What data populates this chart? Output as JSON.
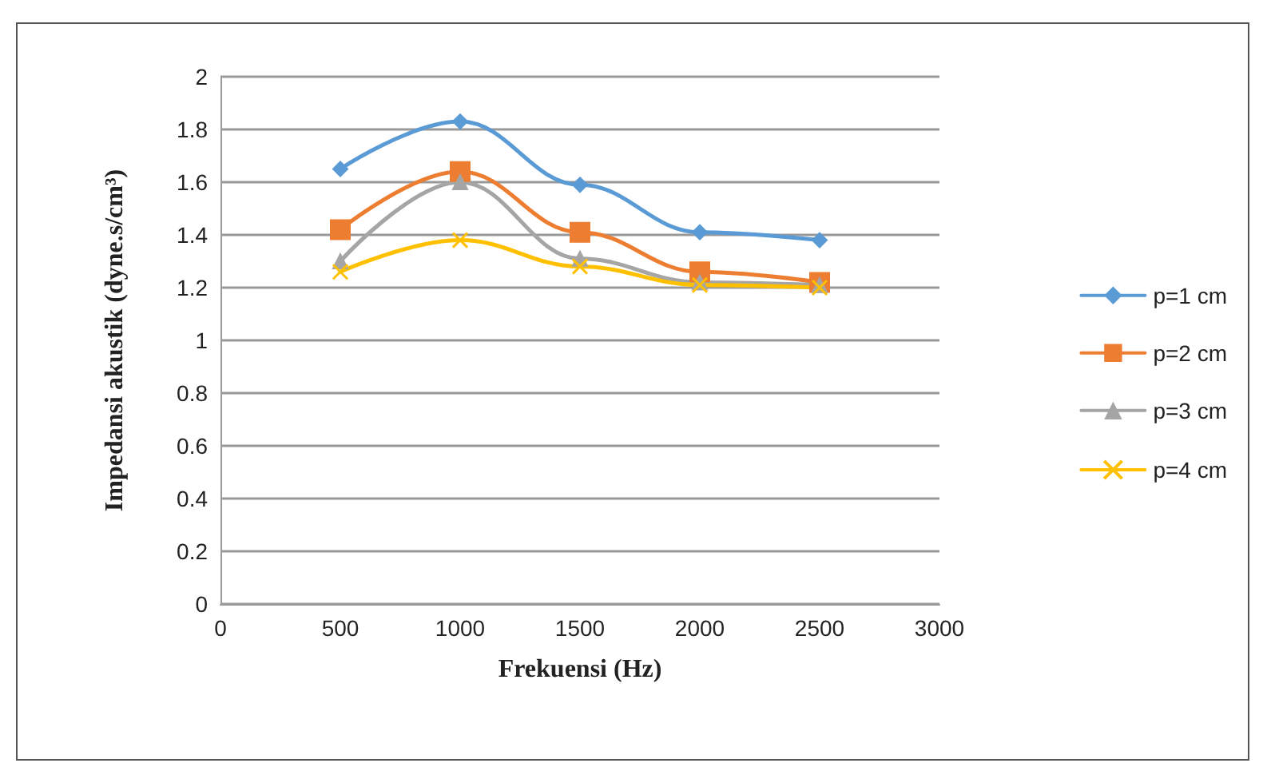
{
  "chart_data": {
    "type": "line",
    "xlabel": "Frekuensi (Hz)",
    "ylabel": "Impedansi akustik (dyne.s/cm³)",
    "x": [
      500,
      1000,
      1500,
      2000,
      2500
    ],
    "series": [
      {
        "name": "p=1 cm",
        "color": "#5b9bd5",
        "marker": "diamond",
        "values": [
          1.65,
          1.83,
          1.59,
          1.41,
          1.38
        ]
      },
      {
        "name": "p=2 cm",
        "color": "#ed7d31",
        "marker": "square",
        "values": [
          1.42,
          1.64,
          1.41,
          1.26,
          1.22
        ]
      },
      {
        "name": "p=3 cm",
        "color": "#a5a5a5",
        "marker": "triangle",
        "values": [
          1.3,
          1.6,
          1.31,
          1.22,
          1.21
        ]
      },
      {
        "name": "p=4 cm",
        "color": "#ffc000",
        "marker": "cross",
        "values": [
          1.26,
          1.38,
          1.28,
          1.21,
          1.2
        ]
      }
    ],
    "xlim": [
      0,
      3000
    ],
    "xticks": [
      0,
      500,
      1000,
      1500,
      2000,
      2500,
      3000
    ],
    "ylim": [
      0,
      2
    ],
    "yticks": [
      0,
      0.2,
      0.4,
      0.6,
      0.8,
      1,
      1.2,
      1.4,
      1.6,
      1.8,
      2
    ],
    "grid": "y",
    "legend": "right"
  }
}
